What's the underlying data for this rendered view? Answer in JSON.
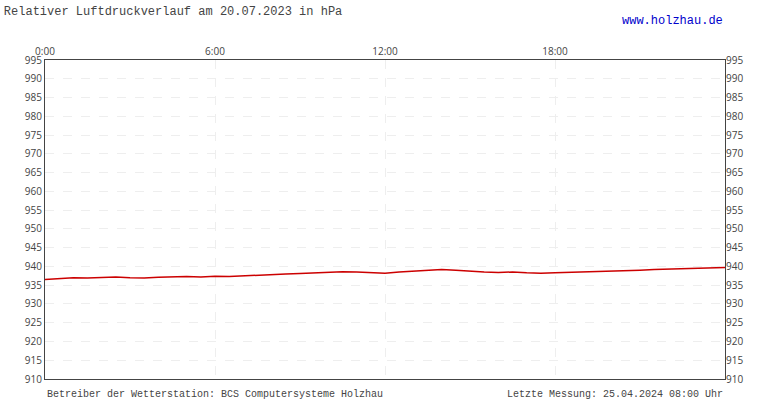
{
  "chart_data": {
    "type": "line",
    "title": "Relativer Luftdruckverlauf am 20.07.2023 in hPa",
    "annotations": [
      {
        "text": "www.holzhau.de",
        "color": "#0000cc"
      },
      {
        "text": "Betreiber der Wetterstation: BCS Computersysteme Holzhau"
      },
      {
        "text": "Letzte Messung: 25.04.2024 08:00 Uhr"
      }
    ],
    "x": [
      0,
      30,
      60,
      90,
      120,
      150,
      180,
      210,
      240,
      270,
      300,
      330,
      360,
      390,
      420,
      450,
      480,
      510,
      540,
      570,
      600,
      630,
      660,
      690,
      720,
      750,
      780,
      810,
      840,
      870,
      900,
      930,
      960,
      990,
      1020,
      1050,
      1080,
      1110,
      1140,
      1170,
      1200,
      1230,
      1260,
      1290,
      1320,
      1350,
      1380,
      1410,
      1440
    ],
    "values": [
      936.5,
      936.8,
      937.0,
      936.9,
      937.1,
      937.2,
      937.0,
      936.9,
      937.1,
      937.2,
      937.3,
      937.2,
      937.4,
      937.3,
      937.5,
      937.7,
      937.9,
      938.0,
      938.1,
      938.3,
      938.4,
      938.6,
      938.5,
      938.3,
      938.2,
      938.5,
      938.7,
      939.0,
      939.2,
      939.0,
      938.7,
      938.5,
      938.4,
      938.5,
      938.3,
      938.2,
      938.3,
      938.4,
      938.5,
      938.7,
      938.8,
      938.9,
      939.0,
      939.2,
      939.3,
      939.4,
      939.5,
      939.6,
      939.7
    ],
    "color": "#cc0000",
    "xlim": [
      0,
      1440
    ],
    "xticks": [
      {
        "value": 0,
        "label": "0:00"
      },
      {
        "value": 360,
        "label": "6:00"
      },
      {
        "value": 720,
        "label": "12:00"
      },
      {
        "value": 1080,
        "label": "18:00"
      }
    ],
    "ylim": [
      910,
      995
    ],
    "yticks": [
      910,
      915,
      920,
      925,
      930,
      935,
      940,
      945,
      950,
      955,
      960,
      965,
      970,
      975,
      980,
      985,
      990,
      995
    ],
    "grid": true
  }
}
